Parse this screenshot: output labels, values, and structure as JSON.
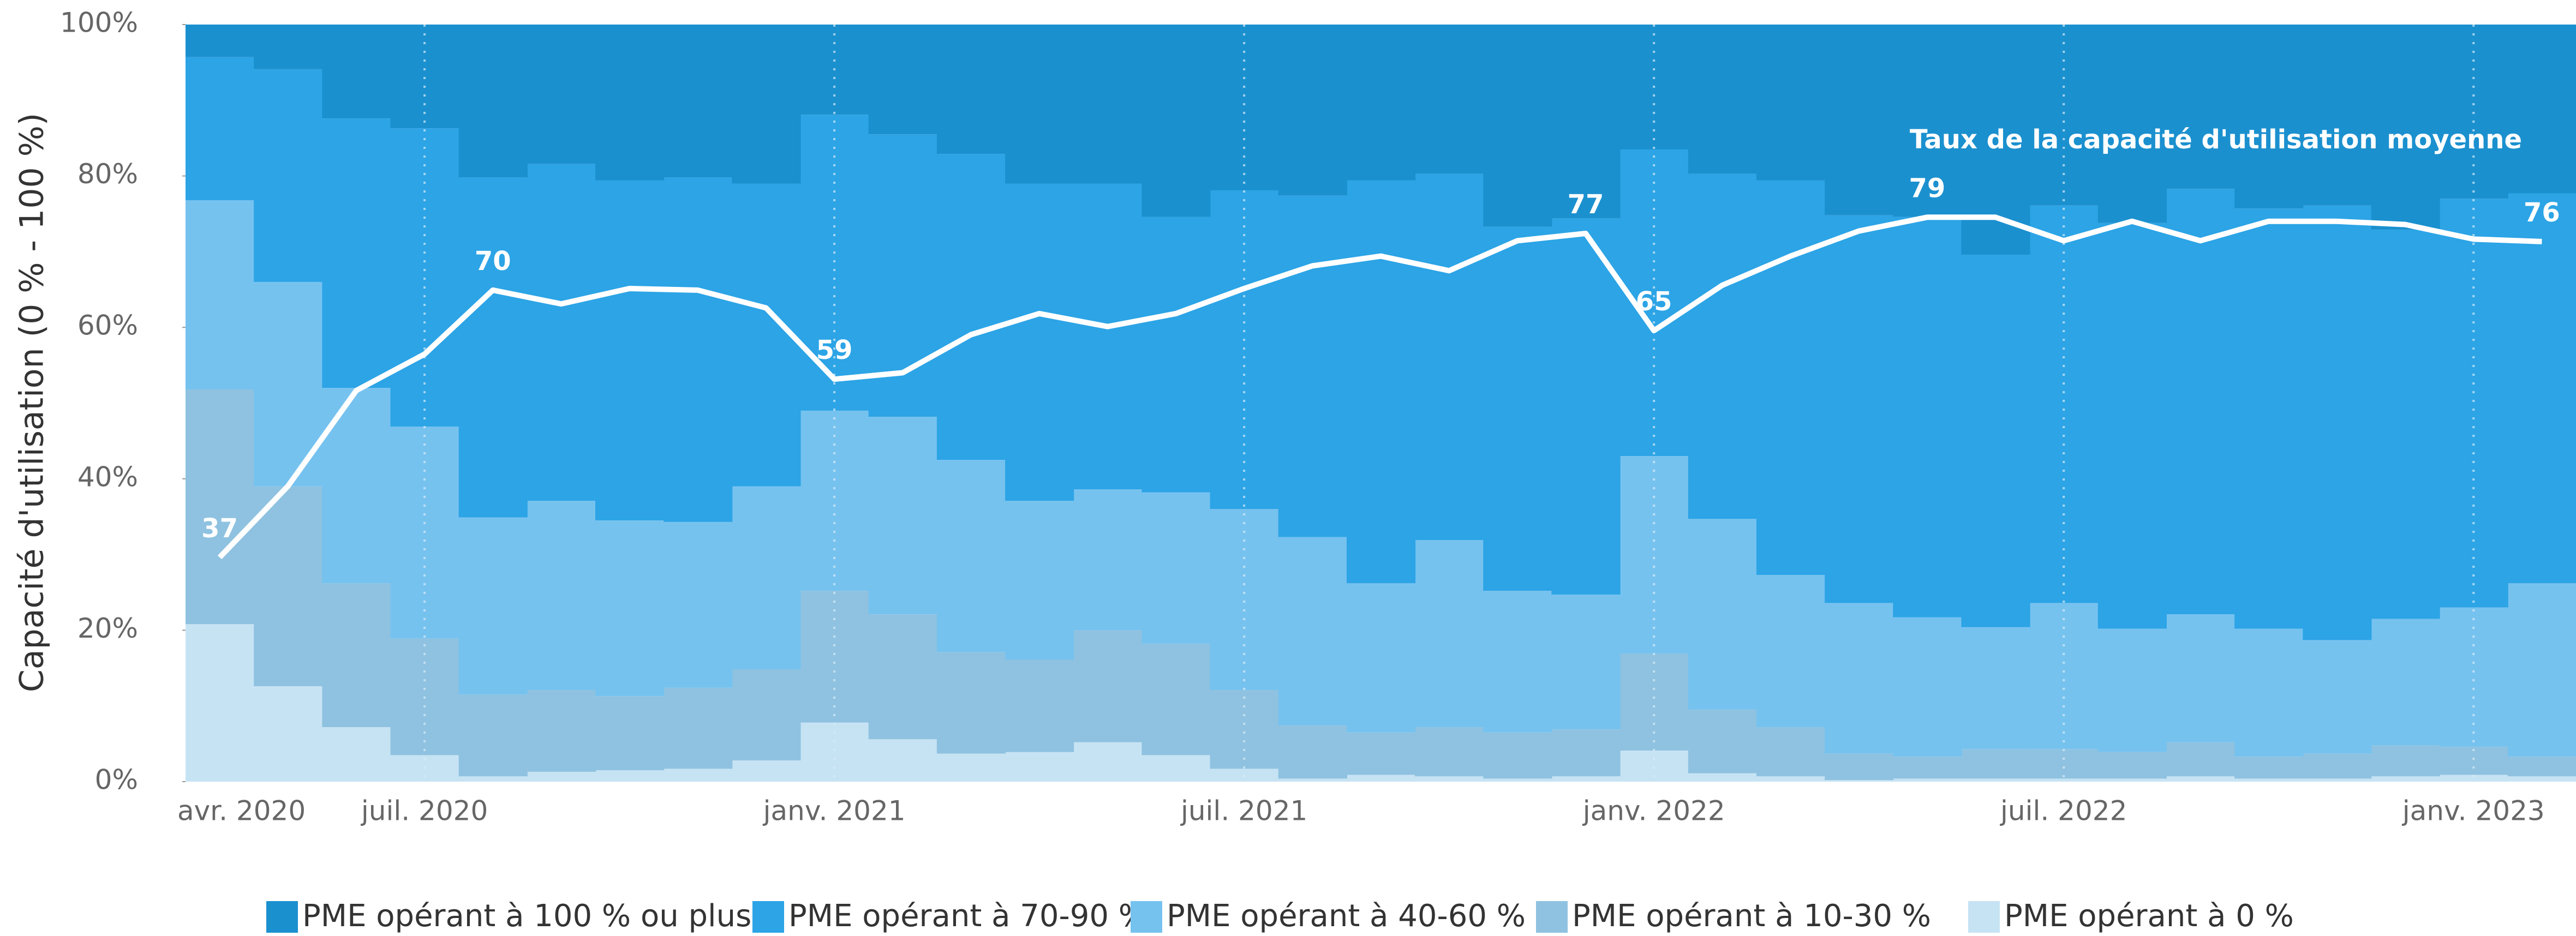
{
  "chart_data": {
    "type": "stacked-step-area",
    "y_axis_label": "Capacité d'utilisation (0 % - 100 %)",
    "categories": [
      "avr. 2020",
      null,
      null,
      "juil. 2020",
      null,
      null,
      null,
      null,
      null,
      "janv. 2021",
      null,
      null,
      null,
      null,
      null,
      "juil. 2021",
      null,
      null,
      null,
      null,
      null,
      "janv. 2022",
      null,
      null,
      null,
      null,
      null,
      "juil. 2022",
      null,
      null,
      null,
      null,
      null,
      "janv. 2023",
      null
    ],
    "ylim": [
      0,
      100
    ],
    "yticks": [
      {
        "value": 0,
        "label": "0%"
      },
      {
        "value": 20,
        "label": "20%"
      },
      {
        "value": 40,
        "label": "40%"
      },
      {
        "value": 60,
        "label": "60%"
      },
      {
        "value": 80,
        "label": "80%"
      },
      {
        "value": 100,
        "label": "100%"
      }
    ],
    "y2lim": [
      9.3,
      102.8
    ],
    "series": [
      {
        "name": "PME opérant à 0 %",
        "color": "#c6e3f4",
        "values": [
          20.8,
          12.6,
          7.2,
          3.5,
          0.7,
          1.3,
          1.5,
          1.7,
          2.8,
          7.8,
          5.6,
          3.7,
          3.9,
          5.2,
          3.5,
          1.7,
          0.4,
          0.9,
          0.7,
          0.4,
          0.7,
          4.1,
          1.1,
          0.7,
          0.2,
          0.4,
          0.4,
          0.4,
          0.4,
          0.7,
          0.4,
          0.4,
          0.7,
          0.9,
          0.7
        ]
      },
      {
        "name": "PME opérant à 10-30 %",
        "color": "#8fc2e0",
        "values": [
          31.0,
          26.4,
          19.0,
          15.4,
          10.8,
          10.8,
          9.8,
          10.7,
          12.0,
          17.4,
          16.5,
          13.4,
          12.2,
          14.8,
          14.7,
          10.4,
          7.0,
          5.6,
          6.5,
          6.1,
          6.2,
          12.8,
          8.4,
          6.5,
          3.5,
          2.9,
          3.9,
          3.9,
          3.5,
          4.5,
          2.9,
          3.3,
          4.1,
          3.7,
          2.6
        ]
      },
      {
        "name": "PME opérant à 40-60 %",
        "color": "#76c2ef",
        "values": [
          25.0,
          27.0,
          25.8,
          28.0,
          23.4,
          25.0,
          23.2,
          21.9,
          24.2,
          23.8,
          26.1,
          25.4,
          21.0,
          18.6,
          20.0,
          23.9,
          24.9,
          19.7,
          24.7,
          18.7,
          17.8,
          26.1,
          25.2,
          20.1,
          19.9,
          18.4,
          16.1,
          19.3,
          16.3,
          16.9,
          16.9,
          15.0,
          16.7,
          18.4,
          22.9
        ]
      },
      {
        "name": "PME opérant à 70-90 %",
        "color": "#2ca4e6",
        "values": [
          18.9,
          28.1,
          35.6,
          39.4,
          44.9,
          44.5,
          44.9,
          45.5,
          40.0,
          39.1,
          37.3,
          40.4,
          41.9,
          40.4,
          36.4,
          42.1,
          45.1,
          53.2,
          48.4,
          48.1,
          49.7,
          40.5,
          45.6,
          52.1,
          51.2,
          52.9,
          49.2,
          52.5,
          53.6,
          56.2,
          55.5,
          57.4,
          51.4,
          54.0,
          51.5
        ]
      },
      {
        "name": "PME opérant à 100 % ou plus",
        "color": "#1b90cf",
        "values": [
          4.3,
          5.9,
          12.4,
          13.7,
          20.2,
          18.4,
          20.6,
          20.2,
          21.0,
          11.9,
          14.5,
          17.1,
          21.0,
          21.0,
          25.4,
          21.9,
          22.6,
          20.6,
          19.7,
          26.7,
          25.6,
          16.5,
          19.7,
          20.6,
          25.2,
          25.4,
          30.4,
          23.9,
          26.2,
          21.7,
          24.3,
          23.9,
          27.1,
          23.0,
          22.3
        ]
      },
      {
        "name": "Taux de la capacité d'utilisation moyenne",
        "type": "line",
        "axis": "y2",
        "color": "#ffffff",
        "values": [
          37,
          45.8,
          57.6,
          62.1,
          70,
          68.3,
          70.2,
          70,
          67.8,
          59,
          59.8,
          64.5,
          67.1,
          65.5,
          67.1,
          70.2,
          73,
          74.2,
          72.4,
          76.1,
          77,
          65,
          70.6,
          74.2,
          77.3,
          79,
          79,
          76.1,
          78.5,
          76.1,
          78.5,
          78.5,
          78.1,
          76.3,
          76
        ],
        "value_labels": [
          "37",
          null,
          null,
          null,
          "70",
          null,
          null,
          null,
          null,
          "59",
          null,
          null,
          null,
          null,
          null,
          null,
          null,
          null,
          null,
          null,
          "77",
          "65",
          null,
          null,
          null,
          "79",
          null,
          null,
          null,
          null,
          null,
          null,
          null,
          null,
          "76"
        ]
      }
    ]
  }
}
